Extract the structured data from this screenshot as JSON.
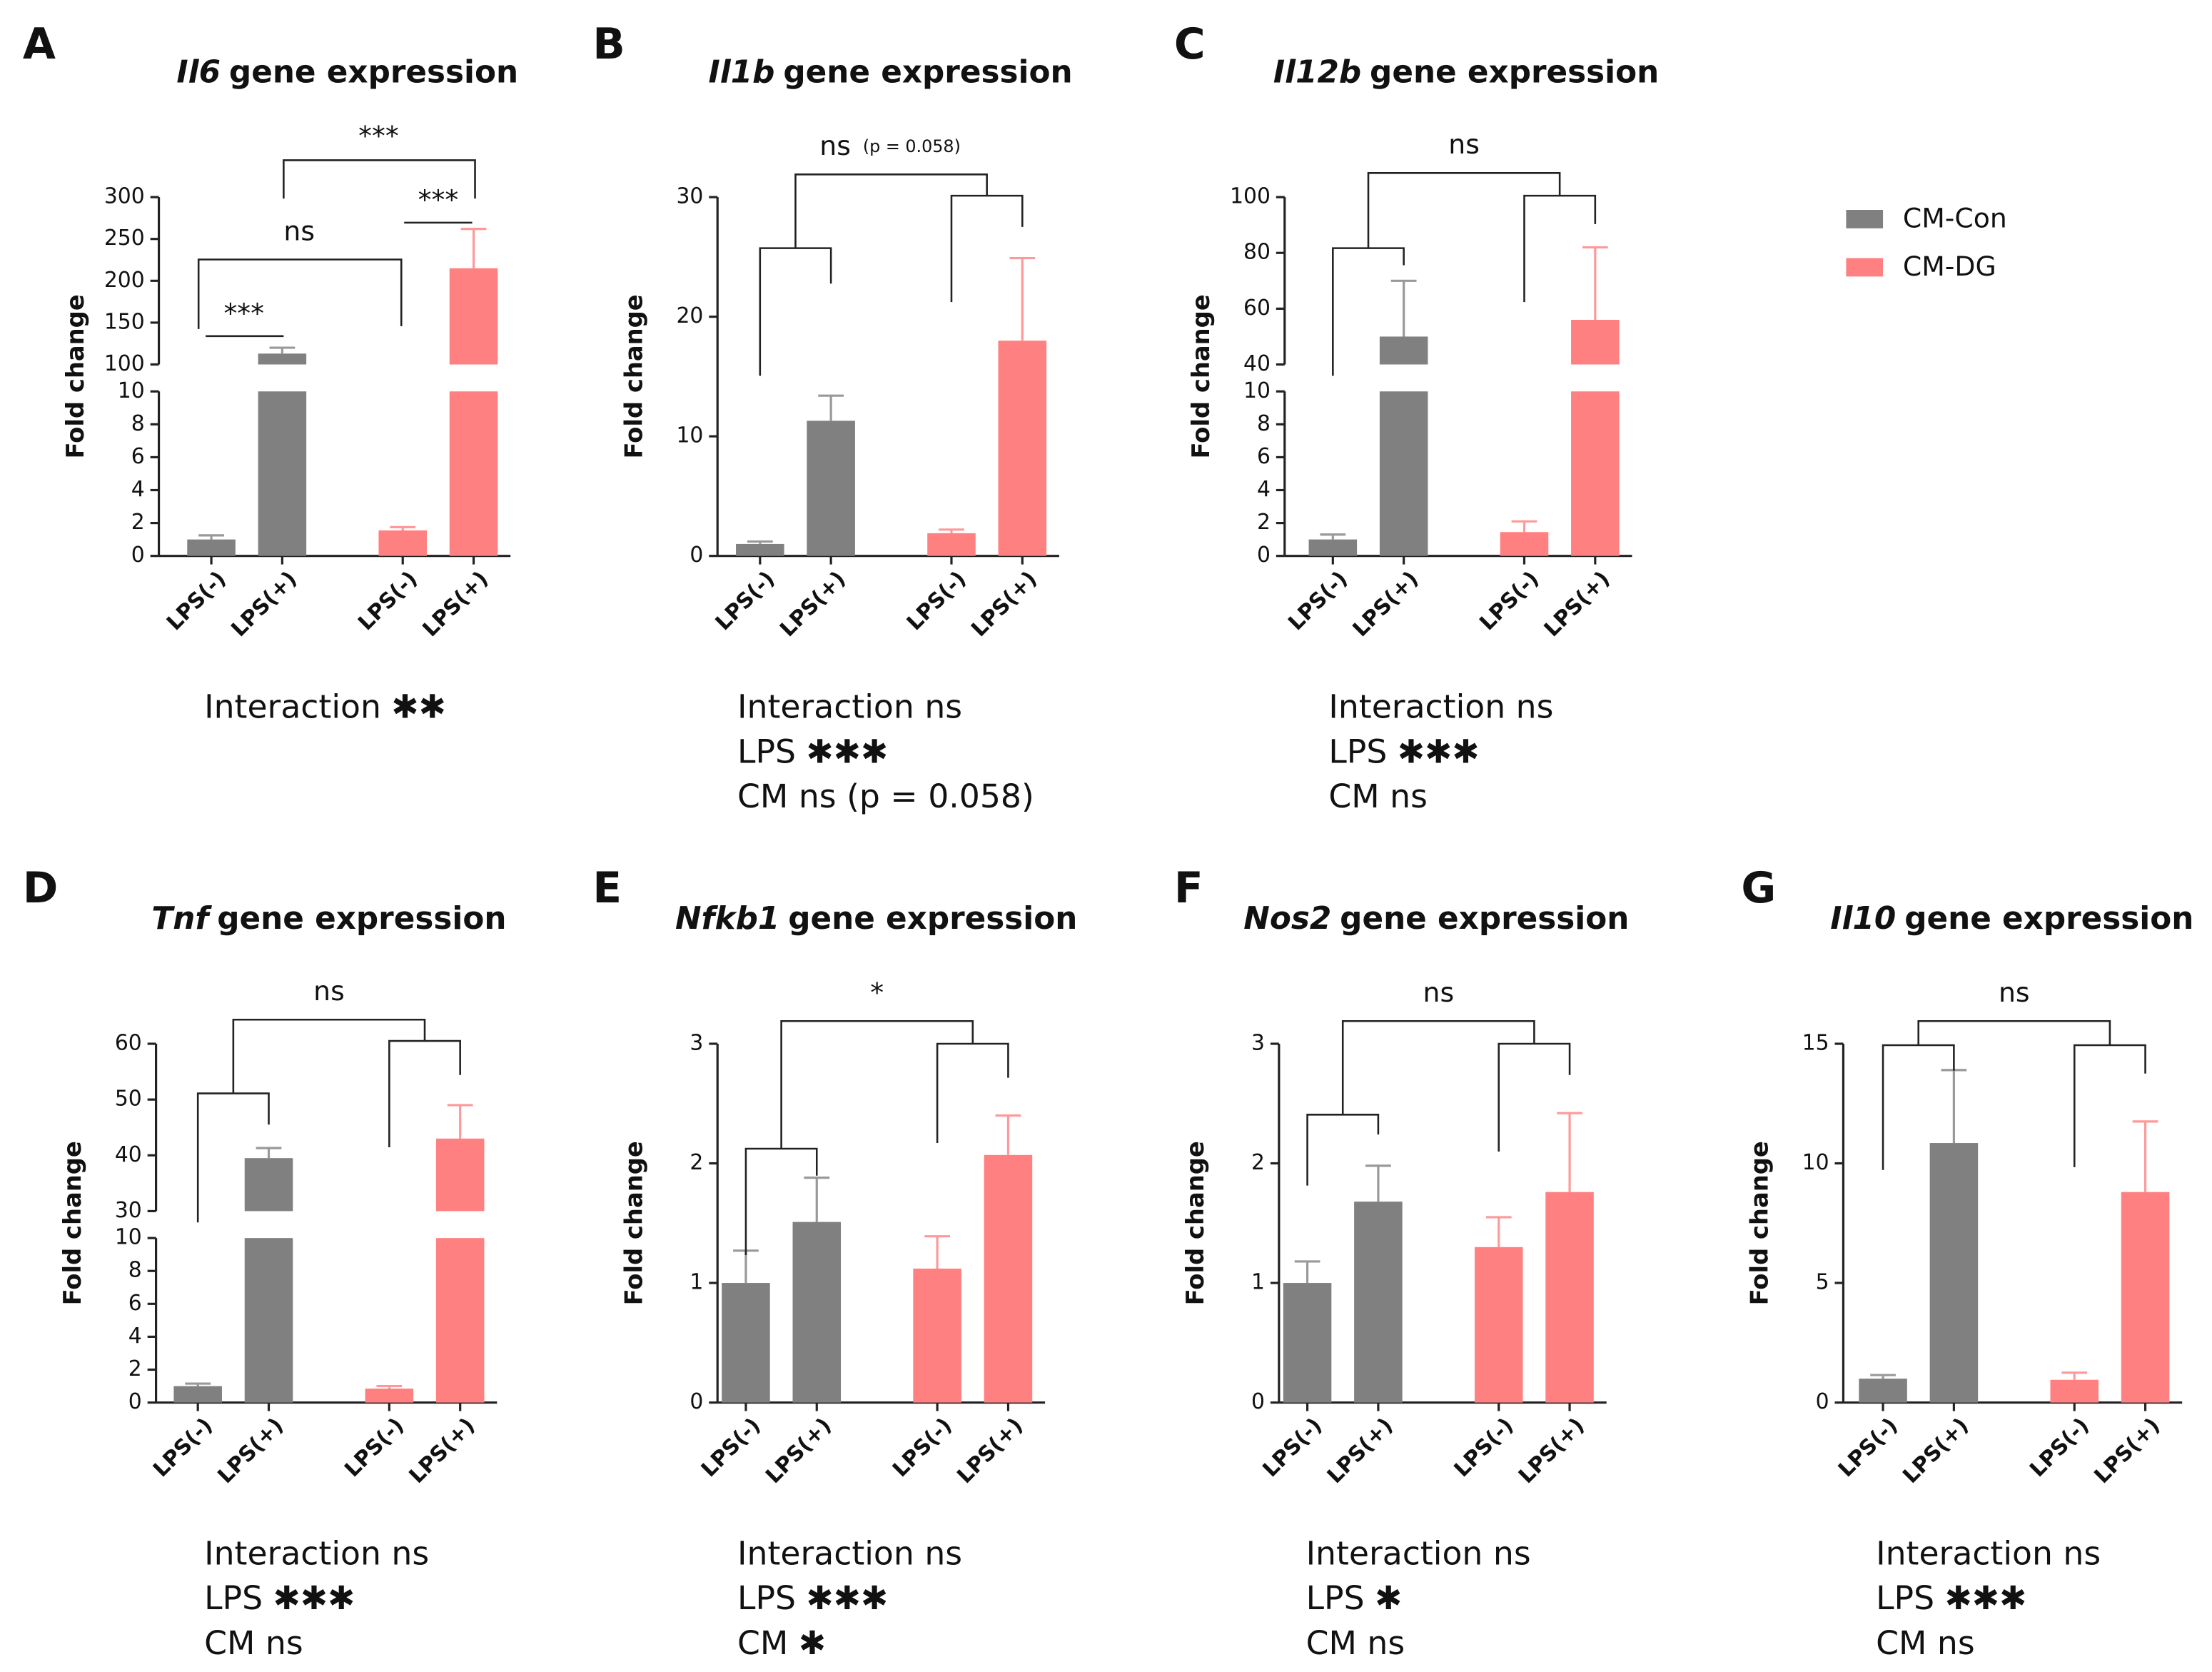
{
  "legend": [
    {
      "name": "CM-Con",
      "color": "#808080"
    },
    {
      "name": "CM-DG",
      "color": "#ff8080"
    }
  ],
  "chart_data": [
    {
      "type": "bar",
      "panel": "A",
      "gene": "Il6",
      "title": "gene expression",
      "ylabel": "Fold change",
      "categories": [
        "LPS(-)",
        "LPS(+)",
        "LPS(-)",
        "LPS(+)"
      ],
      "series": [
        {
          "values": [
            1.0,
            113,
            null,
            null
          ],
          "errors": [
            0.25,
            7,
            null,
            null
          ]
        },
        {
          "values": [
            null,
            null,
            1.55,
            215
          ],
          "errors": [
            null,
            null,
            0.2,
            47
          ]
        }
      ],
      "ylim": [
        0,
        10
      ],
      "yticks": [
        0,
        2,
        4,
        6,
        8,
        10
      ],
      "break": {
        "ylim": [
          100,
          300
        ],
        "yticks": [
          100,
          150,
          200,
          250,
          300
        ]
      },
      "comparisons": [
        "***",
        "ns",
        "***",
        "***"
      ],
      "stats": [
        "Interaction ✱✱"
      ]
    },
    {
      "type": "bar",
      "panel": "B",
      "gene": "Il1b",
      "title": "gene expression",
      "ylabel": "Fold change",
      "categories": [
        "LPS(-)",
        "LPS(+)",
        "LPS(-)",
        "LPS(+)"
      ],
      "series": [
        {
          "values": [
            1.0,
            11.3,
            null,
            null
          ],
          "errors": [
            0.2,
            2.1,
            null,
            null
          ]
        },
        {
          "values": [
            null,
            null,
            1.9,
            18.0
          ],
          "errors": [
            null,
            null,
            0.3,
            6.9
          ]
        }
      ],
      "ylim": [
        0,
        30
      ],
      "yticks": [
        0,
        10,
        20,
        30
      ],
      "comparisons": [
        "ns"
      ],
      "comparison_note": "(p = 0.058)",
      "stats": [
        "Interaction ns",
        "LPS ✱✱✱",
        "CM ns (p = 0.058)"
      ]
    },
    {
      "type": "bar",
      "panel": "C",
      "gene": "Il12b",
      "title": "gene expression",
      "ylabel": "Fold change",
      "categories": [
        "LPS(-)",
        "LPS(+)",
        "LPS(-)",
        "LPS(+)"
      ],
      "series": [
        {
          "values": [
            1.0,
            50,
            null,
            null
          ],
          "errors": [
            0.3,
            20,
            null,
            null
          ]
        },
        {
          "values": [
            null,
            null,
            1.45,
            56
          ],
          "errors": [
            null,
            null,
            0.65,
            26
          ]
        }
      ],
      "ylim": [
        0,
        10
      ],
      "yticks": [
        0,
        2,
        4,
        6,
        8,
        10
      ],
      "break": {
        "ylim": [
          40,
          100
        ],
        "yticks": [
          40,
          60,
          80,
          100
        ]
      },
      "comparisons": [
        "ns"
      ],
      "stats": [
        "Interaction ns",
        "LPS ✱✱✱",
        "CM ns"
      ]
    },
    {
      "type": "bar",
      "panel": "D",
      "gene": "Tnf",
      "title": "gene expression",
      "ylabel": "Fold change",
      "categories": [
        "LPS(-)",
        "LPS(+)",
        "LPS(-)",
        "LPS(+)"
      ],
      "series": [
        {
          "values": [
            1.0,
            39.5,
            null,
            null
          ],
          "errors": [
            0.15,
            1.8,
            null,
            null
          ]
        },
        {
          "values": [
            null,
            null,
            0.85,
            43
          ],
          "errors": [
            null,
            null,
            0.15,
            6
          ]
        }
      ],
      "ylim": [
        0,
        10
      ],
      "yticks": [
        0,
        2,
        4,
        6,
        8,
        10
      ],
      "break": {
        "ylim": [
          30,
          60
        ],
        "yticks": [
          30,
          40,
          50,
          60
        ]
      },
      "comparisons": [
        "ns"
      ],
      "stats": [
        "Interaction ns",
        "LPS ✱✱✱",
        "CM ns"
      ]
    },
    {
      "type": "bar",
      "panel": "E",
      "gene": "Nfkb1",
      "title": "gene expression",
      "ylabel": "Fold change",
      "categories": [
        "LPS(-)",
        "LPS(+)",
        "LPS(-)",
        "LPS(+)"
      ],
      "series": [
        {
          "values": [
            1.0,
            1.51,
            null,
            null
          ],
          "errors": [
            0.27,
            0.37,
            null,
            null
          ]
        },
        {
          "values": [
            null,
            null,
            1.12,
            2.07
          ],
          "errors": [
            null,
            null,
            0.27,
            0.33
          ]
        }
      ],
      "ylim": [
        0,
        3
      ],
      "yticks": [
        0,
        1,
        2,
        3
      ],
      "comparisons": [
        "*"
      ],
      "stats": [
        "Interaction ns",
        "LPS ✱✱✱",
        "CM ✱"
      ]
    },
    {
      "type": "bar",
      "panel": "F",
      "gene": "Nos2",
      "title": "gene expression",
      "ylabel": "Fold change",
      "categories": [
        "LPS(-)",
        "LPS(+)",
        "LPS(-)",
        "LPS(+)"
      ],
      "series": [
        {
          "values": [
            1.0,
            1.68,
            null,
            null
          ],
          "errors": [
            0.18,
            0.3,
            null,
            null
          ]
        },
        {
          "values": [
            null,
            null,
            1.3,
            1.76
          ],
          "errors": [
            null,
            null,
            0.25,
            0.66
          ]
        }
      ],
      "ylim": [
        0,
        3
      ],
      "yticks": [
        0,
        1,
        2,
        3
      ],
      "comparisons": [
        "ns"
      ],
      "stats": [
        "Interaction ns",
        "LPS ✱",
        "CM ns"
      ]
    },
    {
      "type": "bar",
      "panel": "G",
      "gene": "Il10",
      "title": "gene expression",
      "ylabel": "Fold change",
      "categories": [
        "LPS(-)",
        "LPS(+)",
        "LPS(-)",
        "LPS(+)"
      ],
      "series": [
        {
          "values": [
            1.0,
            10.85,
            null,
            null
          ],
          "errors": [
            0.15,
            3.05,
            null,
            null
          ]
        },
        {
          "values": [
            null,
            null,
            0.95,
            8.8
          ],
          "errors": [
            null,
            null,
            0.3,
            2.95
          ]
        }
      ],
      "ylim": [
        0,
        15
      ],
      "yticks": [
        0,
        5,
        10,
        15
      ],
      "comparisons": [
        "ns"
      ],
      "stats": [
        "Interaction ns",
        "LPS ✱✱✱",
        "CM ns"
      ]
    }
  ]
}
